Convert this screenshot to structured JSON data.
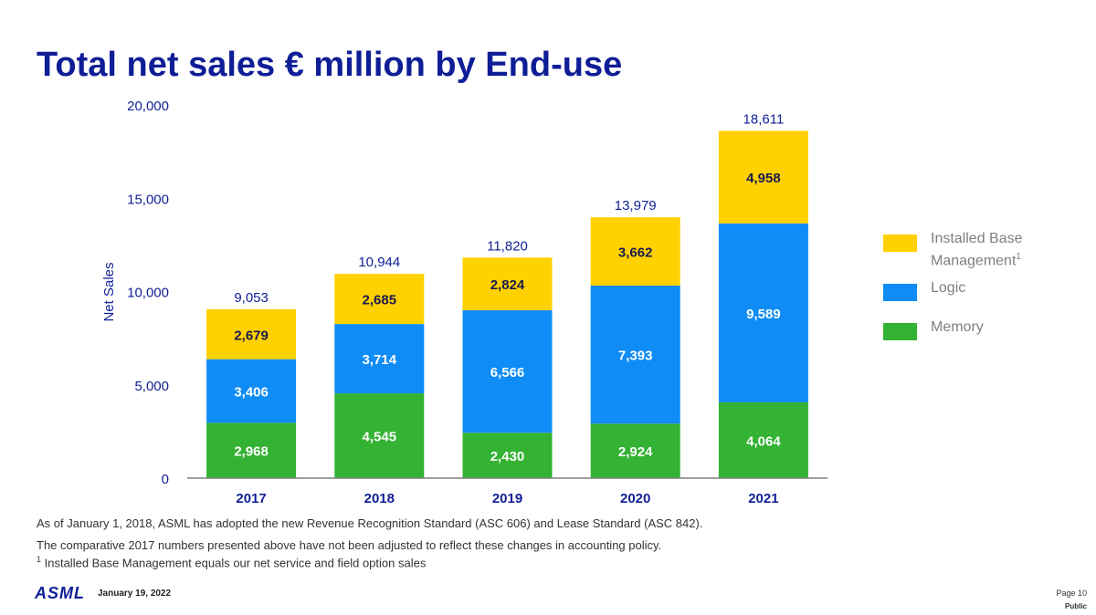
{
  "title": "Total net sales € million by End-use",
  "chart_data": {
    "type": "bar",
    "stacked": true,
    "categories": [
      "2017",
      "2018",
      "2019",
      "2020",
      "2021"
    ],
    "series": [
      {
        "name": "Memory",
        "color": "#34b233",
        "values": [
          2968,
          4545,
          2430,
          2924,
          4064
        ]
      },
      {
        "name": "Logic",
        "color": "#0f8cf5",
        "values": [
          3406,
          3714,
          6566,
          7393,
          9589
        ]
      },
      {
        "name": "Installed Base Management",
        "color": "#ffd100",
        "values": [
          2679,
          2685,
          2824,
          3662,
          4958
        ]
      }
    ],
    "totals": [
      9053,
      10944,
      11820,
      13979,
      18611
    ],
    "ylabel": "Net Sales",
    "ylim": [
      0,
      20000
    ],
    "yticks": [
      0,
      5000,
      10000,
      15000,
      20000
    ],
    "grid": false,
    "legend_position": "right"
  },
  "legend": [
    {
      "label": "Installed Base Management",
      "sup": "1",
      "color": "#ffd100"
    },
    {
      "label": "Logic",
      "sup": "",
      "color": "#0f8cf5"
    },
    {
      "label": "Memory",
      "sup": "",
      "color": "#34b233"
    }
  ],
  "notes": {
    "line1": "As of January 1, 2018, ASML has adopted the new Revenue Recognition Standard (ASC 606) and Lease Standard (ASC 842).",
    "line2": "The comparative 2017 numbers presented above have not been adjusted to reflect these changes in accounting policy.",
    "line3_sup": "1",
    "line3": " Installed Base Management equals our net service and field option sales"
  },
  "footer": {
    "logo": "ASML",
    "date": "January 19, 2022",
    "page": "Page 10",
    "classification": "Public"
  }
}
